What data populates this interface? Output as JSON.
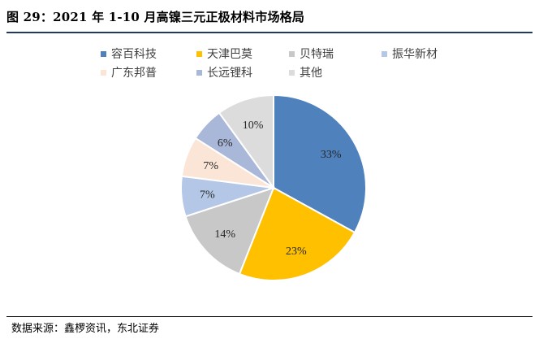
{
  "title": "图 29：2021 年 1-10 月高镍三元正极材料市场格局",
  "source": "数据来源：鑫椤资讯，东北证券",
  "chart_data": {
    "type": "pie",
    "categories": [
      "容百科技",
      "天津巴莫",
      "贝特瑞",
      "振华新材",
      "广东邦普",
      "长远锂科",
      "其他"
    ],
    "values": [
      33,
      23,
      14,
      7,
      7,
      6,
      10
    ],
    "labels": [
      "33%",
      "23%",
      "14%",
      "7%",
      "7%",
      "6%",
      "10%"
    ],
    "colors": [
      "#4f81bd",
      "#ffc000",
      "#c8c8c8",
      "#b4c7e7",
      "#fbe5d6",
      "#a9b8d9",
      "#dcdcdc"
    ],
    "legend": "top",
    "start_angle_deg": 0,
    "direction": "clockwise"
  }
}
